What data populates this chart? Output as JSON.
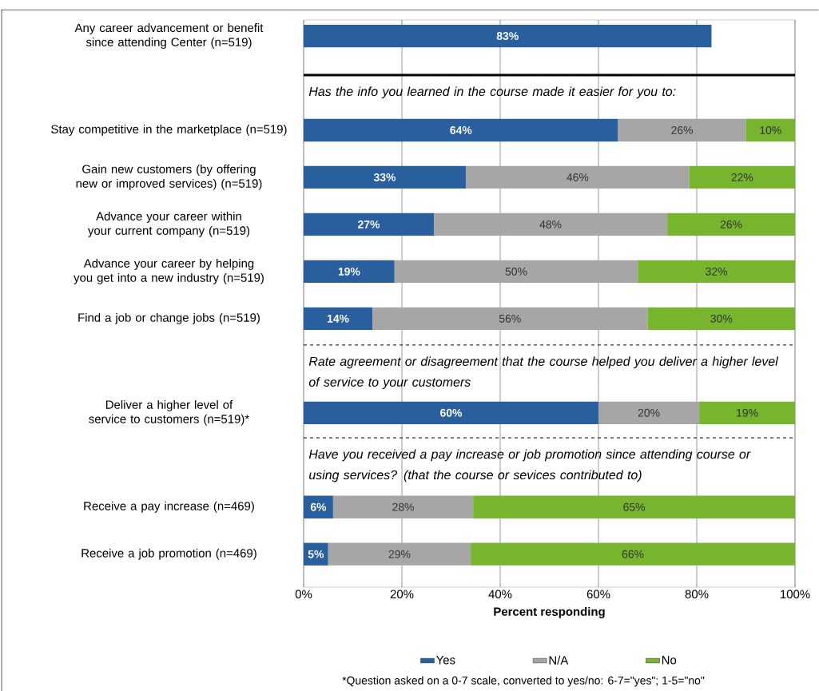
{
  "chart_data": {
    "type": "bar",
    "orientation": "horizontal",
    "stacked": true,
    "categories": [
      "Any career advancement or benefit since attending Center (n=519)",
      "Stay competitive in the marketplace (n=519)",
      "Gain new customers (by offering new or improved services) (n=519)",
      "Advance your career within your current company (n=519)",
      "Advance your career by helping you get into a new industry (n=519)",
      "Find a job or change jobs (n=519)",
      "Deliver a higher level of service to customers (n=519)*",
      "Receive a pay increase (n=469)",
      "Receive a job promotion (n=469)"
    ],
    "series": [
      {
        "name": "Yes",
        "color": "#2a5f9e",
        "values": [
          83,
          64,
          33,
          26.5,
          18.5,
          14,
          60,
          6,
          5
        ],
        "value_labels": [
          "83%",
          "64%",
          "33%",
          "27%",
          "19%",
          "14%",
          "60%",
          "6%",
          "5%"
        ]
      },
      {
        "name": "N/A",
        "color": "#a6a6a6",
        "values": [
          null,
          26,
          45.5,
          47.5,
          49.5,
          56,
          20.5,
          28.5,
          29
        ],
        "value_labels": [
          null,
          "26%",
          "46%",
          "48%",
          "50%",
          "56%",
          "20%",
          "28%",
          "29%"
        ]
      },
      {
        "name": "No",
        "color": "#77b52e",
        "values": [
          null,
          10,
          21.5,
          26,
          32,
          30,
          19.5,
          65.5,
          66
        ],
        "value_labels": [
          null,
          "10%",
          "22%",
          "26%",
          "32%",
          "30%",
          "19%",
          "65%",
          "66%"
        ]
      }
    ],
    "xlim": [
      0,
      100
    ],
    "xticks": [
      {
        "value": 0,
        "label": "0%"
      },
      {
        "value": 20,
        "label": "20%"
      },
      {
        "value": 40,
        "label": "40%"
      },
      {
        "value": 60,
        "label": "60%"
      },
      {
        "value": 80,
        "label": "80%"
      },
      {
        "value": 100,
        "label": "100%"
      }
    ],
    "xlabel": "Percent responding",
    "grid": "x",
    "legend": "bottom",
    "annotations": [
      "Has the info you learned in the course made it easier for you to:",
      "Rate agreement or disagreement that the course helped you deliver a higher level of service to your customers",
      "Have you received a pay increase or job promotion since attending course or using services? (that the course or sevices contributed to)",
      "*Question asked on a 0-7 scale, converted to yes/no: 6-7=\"yes\"; 1-5=\"no\""
    ]
  }
}
